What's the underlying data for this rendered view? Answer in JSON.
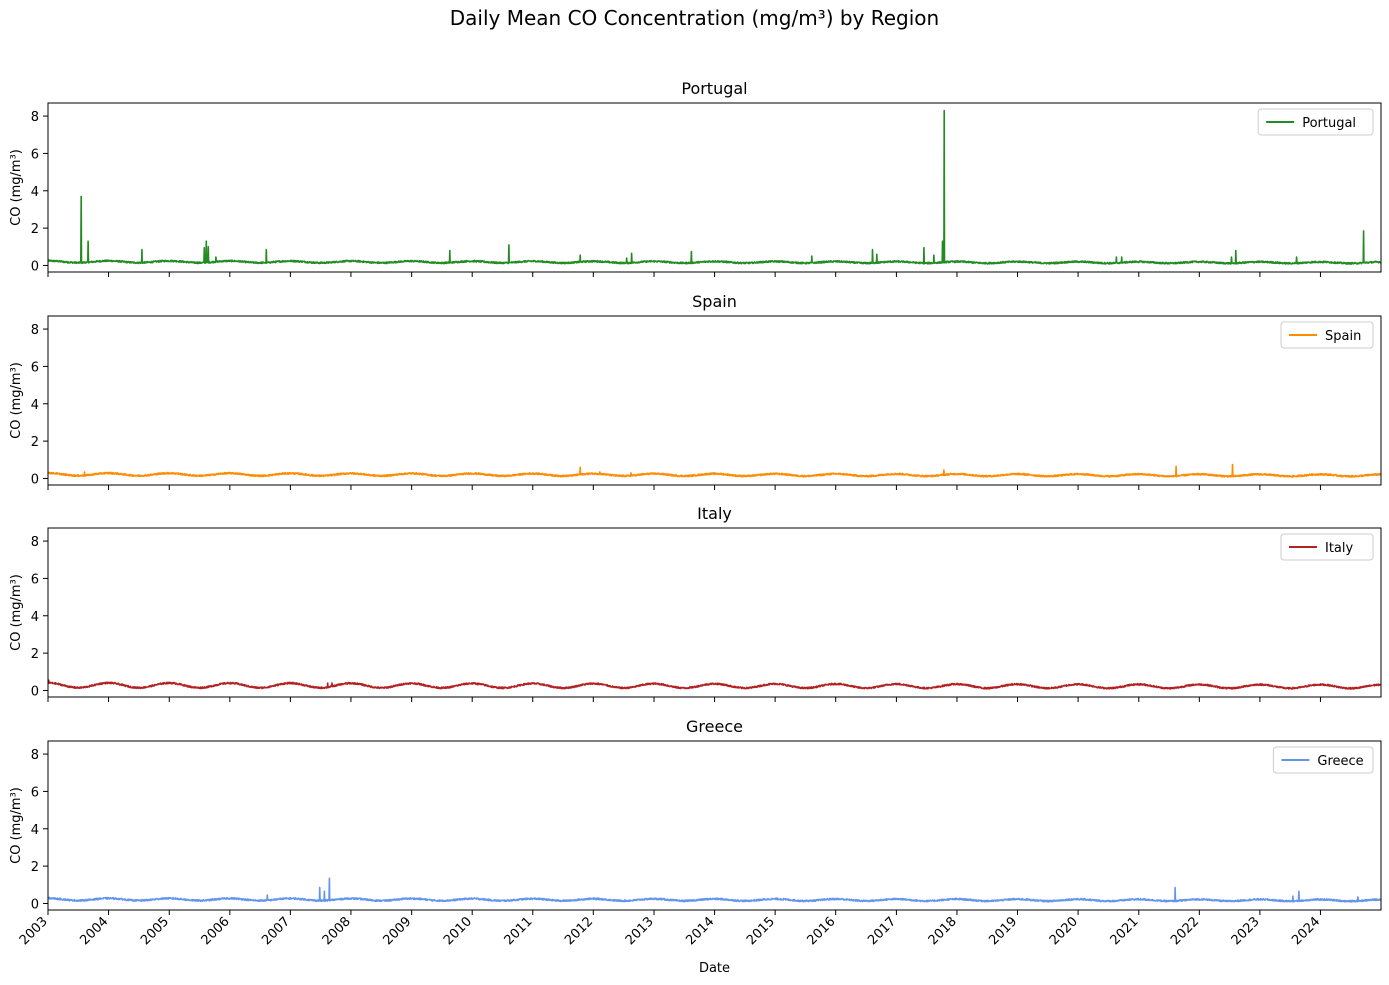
{
  "chart_data": {
    "type": "line",
    "title": "Daily Mean CO Concentration (mg/m³) by Region",
    "xlabel": "Date",
    "ylabel": "CO (mg/m³)",
    "x_range": [
      "2003-01-01",
      "2024-12-31"
    ],
    "ylim": [
      -0.35,
      8.7
    ],
    "yticks": [
      0,
      2,
      4,
      6,
      8
    ],
    "xticks": [
      "2003",
      "2004",
      "2005",
      "2006",
      "2007",
      "2008",
      "2009",
      "2010",
      "2011",
      "2012",
      "2013",
      "2014",
      "2015",
      "2016",
      "2017",
      "2018",
      "2019",
      "2020",
      "2021",
      "2022",
      "2023",
      "2024"
    ],
    "grid": false,
    "legend_position": "upper right",
    "series": [
      {
        "name": "Portugal",
        "color": "#228B22",
        "baseline": 0.2,
        "seasonal_amplitude": 0.05,
        "spikes": [
          {
            "date": "2003-07-20",
            "value": 3.7
          },
          {
            "date": "2003-09-01",
            "value": 1.3
          },
          {
            "date": "2004-07-20",
            "value": 0.85
          },
          {
            "date": "2005-08-01",
            "value": 0.95
          },
          {
            "date": "2005-08-12",
            "value": 1.3
          },
          {
            "date": "2005-08-25",
            "value": 1.0
          },
          {
            "date": "2005-10-10",
            "value": 0.45
          },
          {
            "date": "2006-08-10",
            "value": 0.85
          },
          {
            "date": "2009-08-20",
            "value": 0.8
          },
          {
            "date": "2010-08-10",
            "value": 1.1
          },
          {
            "date": "2011-10-15",
            "value": 0.55
          },
          {
            "date": "2012-07-20",
            "value": 0.4
          },
          {
            "date": "2012-08-20",
            "value": 0.65
          },
          {
            "date": "2013-08-15",
            "value": 0.75
          },
          {
            "date": "2015-08-10",
            "value": 0.5
          },
          {
            "date": "2016-08-10",
            "value": 0.85
          },
          {
            "date": "2016-09-05",
            "value": 0.6
          },
          {
            "date": "2017-06-17",
            "value": 0.95
          },
          {
            "date": "2017-08-15",
            "value": 0.55
          },
          {
            "date": "2017-10-07",
            "value": 1.3
          },
          {
            "date": "2017-10-16",
            "value": 8.3
          },
          {
            "date": "2020-08-20",
            "value": 0.45
          },
          {
            "date": "2020-09-20",
            "value": 0.45
          },
          {
            "date": "2022-07-15",
            "value": 0.45
          },
          {
            "date": "2022-08-10",
            "value": 0.8
          },
          {
            "date": "2023-08-10",
            "value": 0.45
          },
          {
            "date": "2024-09-17",
            "value": 1.85
          }
        ]
      },
      {
        "name": "Spain",
        "color": "#FF8C00",
        "baseline": 0.22,
        "seasonal_amplitude": 0.07,
        "spikes": [
          {
            "date": "2003-08-10",
            "value": 0.35
          },
          {
            "date": "2011-10-15",
            "value": 0.6
          },
          {
            "date": "2012-02-10",
            "value": 0.35
          },
          {
            "date": "2012-08-15",
            "value": 0.3
          },
          {
            "date": "2017-10-15",
            "value": 0.45
          },
          {
            "date": "2021-08-15",
            "value": 0.65
          },
          {
            "date": "2022-07-20",
            "value": 0.75
          }
        ]
      },
      {
        "name": "Italy",
        "color": "#B22222",
        "baseline": 0.28,
        "seasonal_amplitude": 0.13,
        "spikes": [
          {
            "date": "2003-01-05",
            "value": 0.55
          },
          {
            "date": "2007-08-15",
            "value": 0.4
          },
          {
            "date": "2007-09-10",
            "value": 0.4
          }
        ]
      },
      {
        "name": "Greece",
        "color": "#6495ED",
        "baseline": 0.22,
        "seasonal_amplitude": 0.06,
        "spikes": [
          {
            "date": "2006-08-15",
            "value": 0.45
          },
          {
            "date": "2007-06-28",
            "value": 0.85
          },
          {
            "date": "2007-07-25",
            "value": 0.65
          },
          {
            "date": "2007-08-25",
            "value": 1.35
          },
          {
            "date": "2021-08-08",
            "value": 0.85
          },
          {
            "date": "2023-07-20",
            "value": 0.4
          },
          {
            "date": "2023-08-25",
            "value": 0.65
          },
          {
            "date": "2024-08-15",
            "value": 0.35
          }
        ]
      }
    ]
  }
}
